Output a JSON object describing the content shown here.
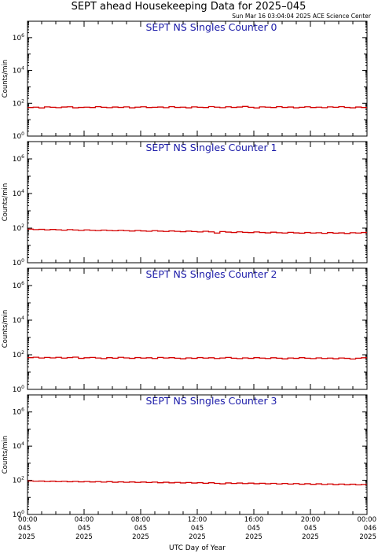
{
  "title": "SEPT ahead Housekeeping Data for 2025–045",
  "timestamp": "Sun Mar 16 03:04:04 2025 ACE Science Center",
  "xlabel": "UTC Day of Year",
  "colors": {
    "series": "#d40000",
    "panel_title": "#1a1aa8",
    "axes": "#000000",
    "background": "#ffffff"
  },
  "chart_data": [
    {
      "type": "line",
      "title": "SEPT NS Singles Counter 0",
      "ylabel": "Counts/min",
      "yscale": "log",
      "ylim": [
        1,
        10000000
      ],
      "yticks": [
        {
          "exp": "0"
        },
        {
          "exp": "2"
        },
        {
          "exp": "4"
        },
        {
          "exp": "6"
        }
      ],
      "xlim_hours": [
        0,
        24
      ],
      "grid": false,
      "series": [
        {
          "values": [
            55,
            58,
            52,
            60,
            57,
            54,
            59,
            61,
            53,
            56,
            58,
            55,
            62,
            57,
            54,
            59,
            56,
            60,
            53,
            58,
            61,
            55,
            57,
            59,
            54,
            62,
            56,
            58,
            53,
            60,
            57,
            55,
            63,
            58,
            54,
            61,
            56,
            59,
            64,
            57,
            52,
            60,
            58,
            55,
            62,
            56,
            59,
            53,
            57,
            61,
            55,
            58,
            54,
            60,
            57,
            62,
            56,
            53,
            59,
            55
          ]
        }
      ]
    },
    {
      "type": "line",
      "title": "SEPT NS Singles Counter 1",
      "ylabel": "Counts/min",
      "yscale": "log",
      "ylim": [
        1,
        10000000
      ],
      "yticks": [
        {
          "exp": "0"
        },
        {
          "exp": "2"
        },
        {
          "exp": "4"
        },
        {
          "exp": "6"
        }
      ],
      "xlim_hours": [
        0,
        24
      ],
      "grid": false,
      "series": [
        {
          "values": [
            88,
            82,
            85,
            79,
            84,
            80,
            76,
            82,
            78,
            74,
            79,
            75,
            72,
            77,
            73,
            70,
            75,
            71,
            68,
            73,
            69,
            66,
            71,
            67,
            64,
            69,
            65,
            62,
            67,
            63,
            60,
            66,
            61,
            52,
            63,
            59,
            56,
            61,
            57,
            55,
            60,
            56,
            53,
            58,
            54,
            52,
            57,
            53,
            51,
            56,
            52,
            54,
            50,
            55,
            51,
            53,
            49,
            54,
            52,
            56
          ]
        }
      ]
    },
    {
      "type": "line",
      "title": "SEPT NS Singles Counter 2",
      "ylabel": "Counts/min",
      "yscale": "log",
      "ylim": [
        1,
        10000000
      ],
      "yticks": [
        {
          "exp": "0"
        },
        {
          "exp": "2"
        },
        {
          "exp": "4"
        },
        {
          "exp": "6"
        }
      ],
      "xlim_hours": [
        0,
        24
      ],
      "grid": false,
      "series": [
        {
          "values": [
            68,
            72,
            65,
            70,
            66,
            71,
            64,
            69,
            73,
            62,
            67,
            70,
            65,
            60,
            68,
            63,
            71,
            66,
            62,
            69,
            64,
            67,
            61,
            70,
            65,
            68,
            63,
            59,
            66,
            62,
            69,
            64,
            67,
            61,
            65,
            70,
            63,
            60,
            66,
            62,
            68,
            64,
            61,
            67,
            63,
            58,
            65,
            62,
            68,
            63,
            60,
            66,
            61,
            64,
            59,
            65,
            62,
            57,
            63,
            67
          ]
        }
      ]
    },
    {
      "type": "line",
      "title": "SEPT NS Singles Counter 3",
      "ylabel": "Counts/min",
      "yscale": "log",
      "ylim": [
        1,
        10000000
      ],
      "yticks": [
        {
          "exp": "0"
        },
        {
          "exp": "2"
        },
        {
          "exp": "4"
        },
        {
          "exp": "6"
        }
      ],
      "xlim_hours": [
        0,
        24
      ],
      "grid": false,
      "series": [
        {
          "values": [
            92,
            88,
            90,
            85,
            89,
            84,
            87,
            82,
            86,
            81,
            85,
            80,
            84,
            78,
            83,
            77,
            81,
            76,
            80,
            75,
            79,
            74,
            78,
            72,
            77,
            71,
            75,
            70,
            74,
            69,
            73,
            67,
            72,
            66,
            62,
            70,
            65,
            69,
            64,
            68,
            63,
            67,
            62,
            66,
            61,
            65,
            60,
            64,
            59,
            63,
            58,
            62,
            57,
            61,
            56,
            60,
            55,
            59,
            54,
            57
          ]
        }
      ]
    }
  ],
  "x_ticks": [
    {
      "time": "00:00",
      "day": "045",
      "year": "2025"
    },
    {
      "time": "04:00",
      "day": "045",
      "year": "2025"
    },
    {
      "time": "08:00",
      "day": "045",
      "year": "2025"
    },
    {
      "time": "12:00",
      "day": "045",
      "year": "2025"
    },
    {
      "time": "16:00",
      "day": "045",
      "year": "2025"
    },
    {
      "time": "20:00",
      "day": "045",
      "year": "2025"
    },
    {
      "time": "00:00",
      "day": "046",
      "year": "2025"
    }
  ]
}
